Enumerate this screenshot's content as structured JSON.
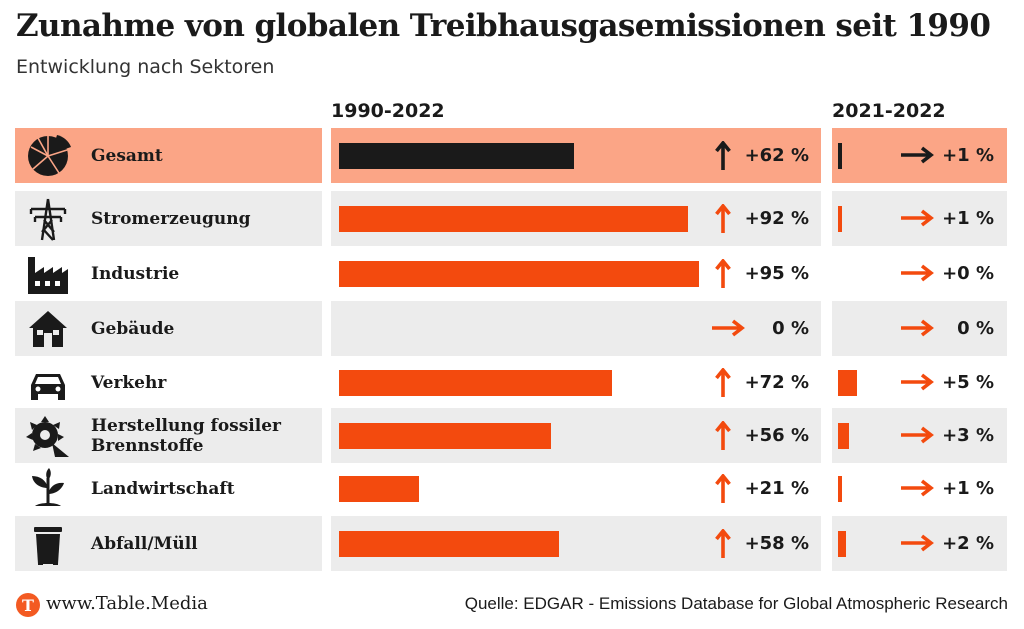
{
  "title": "Zunahme von globalen Treibhausgasemissionen seit 1990",
  "subtitle": "Entwicklung nach Sektoren",
  "colors": {
    "accent": "#f34a0e",
    "dark": "#1a1a1a",
    "highlight": "#fba586",
    "shade": "#ececec"
  },
  "chart_data": {
    "type": "bar",
    "title": "Zunahme von globalen Treibhausgasemissionen seit 1990",
    "subtitle": "Entwicklung nach Sektoren",
    "categories": [
      "Gesamt",
      "Stromerzeugung",
      "Industrie",
      "Gebäude",
      "Verkehr",
      "Herstellung fossiler Brennstoffe",
      "Landwirtschaft",
      "Abfall/Müll"
    ],
    "series": [
      {
        "name": "1990-2022",
        "values": [
          62,
          92,
          95,
          0,
          72,
          56,
          21,
          58
        ],
        "labels": [
          "+62 %",
          "+92 %",
          "+95 %",
          "0 %",
          "+72 %",
          "+56 %",
          "+21 %",
          "+58 %"
        ]
      },
      {
        "name": "2021-2022",
        "values": [
          1,
          1,
          0,
          0,
          5,
          3,
          1,
          2
        ],
        "labels": [
          "+1 %",
          "+1 %",
          "+0 %",
          "0 %",
          "+5 %",
          "+3 %",
          "+1 %",
          "+2 %"
        ]
      }
    ],
    "highlight_category": "Gesamt",
    "value_unit": "%"
  },
  "rows": [
    {
      "label": "Gesamt",
      "icon": "pie-chart-icon",
      "style": "hl",
      "main": {
        "value": 62,
        "label": "+62 %",
        "dir": "up"
      },
      "recent": {
        "value": 1,
        "label": "+1 %",
        "dir": "right"
      }
    },
    {
      "label": "Stromerzeugung",
      "icon": "power-pylon-icon",
      "style": "shade",
      "main": {
        "value": 92,
        "label": "+92 %",
        "dir": "up"
      },
      "recent": {
        "value": 1,
        "label": "+1 %",
        "dir": "right"
      }
    },
    {
      "label": "Industrie",
      "icon": "factory-icon",
      "style": "plain",
      "main": {
        "value": 95,
        "label": "+95 %",
        "dir": "up"
      },
      "recent": {
        "value": 0,
        "label": "+0 %",
        "dir": "right"
      }
    },
    {
      "label": "Gebäude",
      "icon": "house-icon",
      "style": "shade",
      "main": {
        "value": 0,
        "label": "0 %",
        "dir": "right"
      },
      "recent": {
        "value": 0,
        "label": "0 %",
        "dir": "right"
      }
    },
    {
      "label": "Verkehr",
      "icon": "car-icon",
      "style": "plain",
      "main": {
        "value": 72,
        "label": "+72 %",
        "dir": "up"
      },
      "recent": {
        "value": 5,
        "label": "+5 %",
        "dir": "right"
      }
    },
    {
      "label": "Herstellung fossiler Brennstoffe",
      "icon": "excavator-wheel-icon",
      "style": "shade",
      "main": {
        "value": 56,
        "label": "+56 %",
        "dir": "up"
      },
      "recent": {
        "value": 3,
        "label": "+3 %",
        "dir": "right"
      }
    },
    {
      "label": "Landwirtschaft",
      "icon": "plant-icon",
      "style": "plain",
      "main": {
        "value": 21,
        "label": "+21 %",
        "dir": "up"
      },
      "recent": {
        "value": 1,
        "label": "+1 %",
        "dir": "right"
      }
    },
    {
      "label": "Abfall/Müll",
      "icon": "trash-bin-icon",
      "style": "shade",
      "main": {
        "value": 58,
        "label": "+58 %",
        "dir": "up"
      },
      "recent": {
        "value": 2,
        "label": "+2 %",
        "dir": "right"
      }
    }
  ],
  "columns": {
    "main_header": "1990-2022",
    "recent_header": "2021-2022"
  },
  "footer": {
    "logo_letter": "T",
    "site": "www.Table.Media",
    "source": "Quelle: EDGAR - Emissions Database for Global Atmospheric Research"
  }
}
